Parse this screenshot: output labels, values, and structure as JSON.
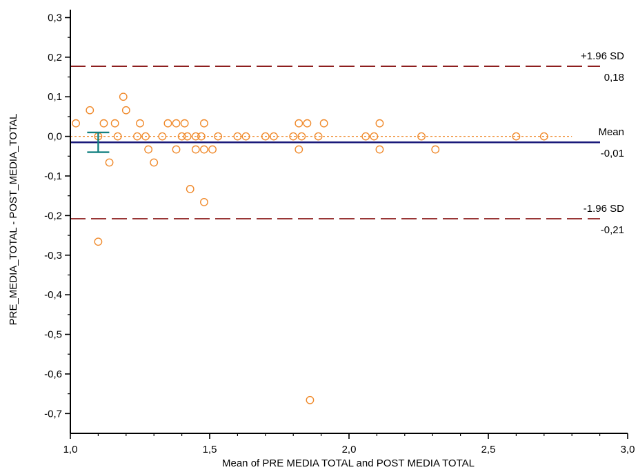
{
  "chart_data": {
    "type": "scatter",
    "title": "",
    "xlabel": "Mean of PRE  MEDIA  TOTAL and POST  MEDIA  TOTAL",
    "ylabel": "PRE_MEDIA_TOTAL - POST_MEDIA_TOTAL",
    "xlim": [
      1.0,
      3.0
    ],
    "ylim": [
      -0.75,
      0.32
    ],
    "x_ticks": [
      1.0,
      1.5,
      2.0,
      2.5,
      3.0
    ],
    "x_tick_labels": [
      "1,0",
      "1,5",
      "2,0",
      "2,5",
      "3,0"
    ],
    "y_ticks": [
      0.3,
      0.2,
      0.1,
      0.0,
      -0.1,
      -0.2,
      -0.3,
      -0.4,
      -0.5,
      -0.6,
      -0.7
    ],
    "y_tick_labels": [
      "0,3",
      "0,2",
      "0,1",
      "0,0",
      "-0,1",
      "-0,2",
      "-0,3",
      "-0,4",
      "-0,5",
      "-0,6",
      "-0,7"
    ],
    "grid": false,
    "reference_lines": [
      {
        "key": "upper",
        "name": "+1.96 SD",
        "value_label": "0,18",
        "y": 0.177,
        "style": "dashed",
        "color": "#8b1a1a"
      },
      {
        "key": "mean",
        "name": "Mean",
        "value_label": "-0,01",
        "y": -0.015,
        "style": "solid",
        "color": "#1a1a7a"
      },
      {
        "key": "lower",
        "name": "-1.96 SD",
        "value_label": "-0,21",
        "y": -0.208,
        "style": "dashed",
        "color": "#8b1a1a"
      }
    ],
    "zero_line": {
      "y": 0.0,
      "x_end": 2.8,
      "color": "#f08a2c"
    },
    "mean_ci": {
      "x": 1.1,
      "y_low": -0.04,
      "y_high": 0.01,
      "color": "#138080"
    },
    "points_color": "#f08a2c",
    "points": [
      [
        1.02,
        0.033
      ],
      [
        1.07,
        0.066
      ],
      [
        1.1,
        0.0
      ],
      [
        1.1,
        -0.266
      ],
      [
        1.12,
        0.033
      ],
      [
        1.14,
        -0.066
      ],
      [
        1.16,
        0.033
      ],
      [
        1.17,
        0.0
      ],
      [
        1.19,
        0.1
      ],
      [
        1.2,
        0.066
      ],
      [
        1.24,
        0.0
      ],
      [
        1.25,
        0.033
      ],
      [
        1.27,
        0.0
      ],
      [
        1.28,
        -0.033
      ],
      [
        1.3,
        -0.066
      ],
      [
        1.33,
        0.0
      ],
      [
        1.35,
        0.033
      ],
      [
        1.38,
        0.033
      ],
      [
        1.38,
        -0.033
      ],
      [
        1.4,
        0.0
      ],
      [
        1.41,
        0.033
      ],
      [
        1.42,
        0.0
      ],
      [
        1.43,
        -0.133
      ],
      [
        1.45,
        0.0
      ],
      [
        1.45,
        -0.033
      ],
      [
        1.47,
        0.0
      ],
      [
        1.48,
        0.033
      ],
      [
        1.48,
        -0.033
      ],
      [
        1.48,
        -0.166
      ],
      [
        1.51,
        -0.033
      ],
      [
        1.53,
        0.0
      ],
      [
        1.6,
        0.0
      ],
      [
        1.63,
        0.0
      ],
      [
        1.7,
        0.0
      ],
      [
        1.73,
        0.0
      ],
      [
        1.8,
        0.0
      ],
      [
        1.82,
        0.033
      ],
      [
        1.82,
        -0.033
      ],
      [
        1.83,
        0.0
      ],
      [
        1.85,
        0.033
      ],
      [
        1.86,
        -0.666
      ],
      [
        1.89,
        0.0
      ],
      [
        1.91,
        0.033
      ],
      [
        2.06,
        0.0
      ],
      [
        2.09,
        0.0
      ],
      [
        2.11,
        0.033
      ],
      [
        2.11,
        -0.033
      ],
      [
        2.26,
        0.0
      ],
      [
        2.31,
        -0.033
      ],
      [
        2.6,
        0.0
      ],
      [
        2.7,
        0.0
      ]
    ]
  }
}
